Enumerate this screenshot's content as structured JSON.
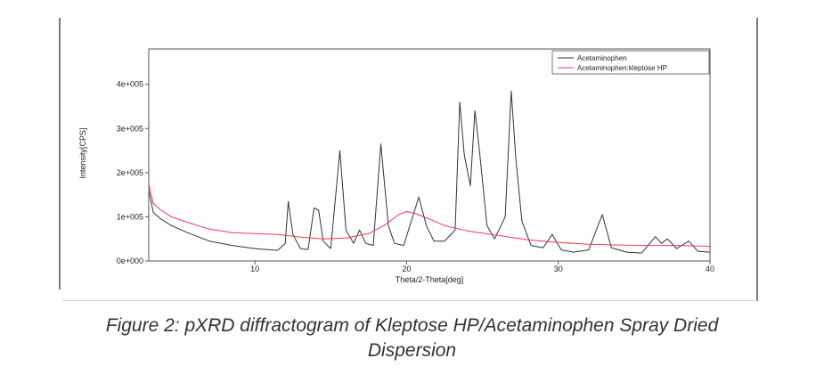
{
  "caption": {
    "line1": "Figure 2: pXRD diffractogram of Kleptose HP/Acetaminophen Spray Dried",
    "line2": "Dispersion"
  },
  "chart_data": {
    "type": "line",
    "xlabel": "Theta/2-Theta[deg]",
    "ylabel": "Intensity[CPS]",
    "xlim": [
      3,
      40
    ],
    "ylim": [
      0,
      480000
    ],
    "x_ticks": [
      10,
      20,
      30,
      40
    ],
    "y_ticks": [
      0,
      100000,
      200000,
      300000,
      400000
    ],
    "x_tick_labels": [
      "10",
      "20",
      "30",
      "40"
    ],
    "y_tick_labels": [
      "0e+000",
      "1e+005",
      "2e+005",
      "3e+005",
      "4e+005"
    ],
    "grid": false,
    "legend": "top-right",
    "series": [
      {
        "name": "Acetaminophen",
        "color": "#333333",
        "points": [
          [
            3.0,
            160000
          ],
          [
            3.3,
            110000
          ],
          [
            3.8,
            95000
          ],
          [
            4.5,
            80000
          ],
          [
            5.5,
            65000
          ],
          [
            7.0,
            45000
          ],
          [
            8.5,
            35000
          ],
          [
            10.0,
            28000
          ],
          [
            11.5,
            24000
          ],
          [
            12.0,
            40000
          ],
          [
            12.2,
            135000
          ],
          [
            12.5,
            60000
          ],
          [
            13.0,
            28000
          ],
          [
            13.5,
            26000
          ],
          [
            13.9,
            120000
          ],
          [
            14.2,
            115000
          ],
          [
            14.5,
            45000
          ],
          [
            15.0,
            28000
          ],
          [
            15.6,
            250000
          ],
          [
            16.0,
            70000
          ],
          [
            16.5,
            40000
          ],
          [
            16.9,
            70000
          ],
          [
            17.3,
            40000
          ],
          [
            17.8,
            35000
          ],
          [
            18.3,
            265000
          ],
          [
            18.8,
            80000
          ],
          [
            19.2,
            40000
          ],
          [
            19.8,
            35000
          ],
          [
            20.4,
            100000
          ],
          [
            20.8,
            145000
          ],
          [
            21.3,
            80000
          ],
          [
            21.8,
            45000
          ],
          [
            22.5,
            45000
          ],
          [
            23.2,
            70000
          ],
          [
            23.5,
            360000
          ],
          [
            23.8,
            240000
          ],
          [
            24.2,
            170000
          ],
          [
            24.5,
            340000
          ],
          [
            24.8,
            250000
          ],
          [
            25.3,
            80000
          ],
          [
            25.8,
            50000
          ],
          [
            26.5,
            100000
          ],
          [
            26.9,
            385000
          ],
          [
            27.2,
            230000
          ],
          [
            27.6,
            90000
          ],
          [
            28.2,
            35000
          ],
          [
            29.0,
            30000
          ],
          [
            29.6,
            60000
          ],
          [
            30.2,
            25000
          ],
          [
            31.0,
            20000
          ],
          [
            32.0,
            25000
          ],
          [
            32.9,
            105000
          ],
          [
            33.5,
            30000
          ],
          [
            34.5,
            20000
          ],
          [
            35.5,
            18000
          ],
          [
            36.4,
            55000
          ],
          [
            36.8,
            40000
          ],
          [
            37.2,
            50000
          ],
          [
            37.8,
            28000
          ],
          [
            38.6,
            45000
          ],
          [
            39.2,
            22000
          ],
          [
            40.0,
            20000
          ]
        ]
      },
      {
        "name": "Acetaminophen:kleptose HP",
        "color": "#ee3b50",
        "points": [
          [
            3.0,
            175000
          ],
          [
            3.3,
            130000
          ],
          [
            3.8,
            115000
          ],
          [
            4.5,
            100000
          ],
          [
            5.5,
            88000
          ],
          [
            7.0,
            72000
          ],
          [
            8.5,
            64000
          ],
          [
            10.0,
            62000
          ],
          [
            11.5,
            60000
          ],
          [
            13.0,
            54000
          ],
          [
            14.5,
            50000
          ],
          [
            16.0,
            52000
          ],
          [
            17.5,
            62000
          ],
          [
            18.5,
            80000
          ],
          [
            19.5,
            105000
          ],
          [
            20.0,
            112000
          ],
          [
            20.5,
            108000
          ],
          [
            21.5,
            95000
          ],
          [
            22.5,
            80000
          ],
          [
            24.0,
            68000
          ],
          [
            26.0,
            58000
          ],
          [
            28.0,
            48000
          ],
          [
            30.0,
            42000
          ],
          [
            32.0,
            38000
          ],
          [
            34.0,
            36000
          ],
          [
            36.0,
            35000
          ],
          [
            38.0,
            35000
          ],
          [
            40.0,
            33000
          ]
        ]
      }
    ]
  }
}
